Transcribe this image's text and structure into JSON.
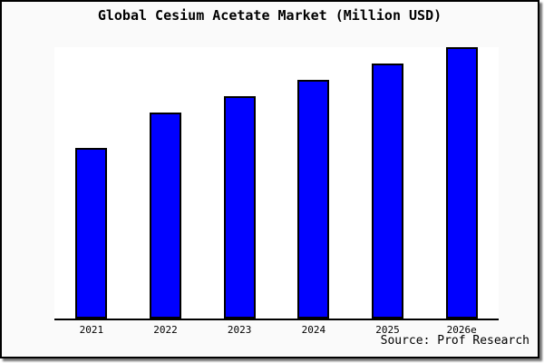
{
  "title": "Global Cesium Acetate Market (Million USD)",
  "source_credit": "Source: Prof Research",
  "colors": {
    "bar_fill": "#0000ff",
    "bar_edge": "#000000",
    "plot_background": "#ffffff",
    "figure_background": "#fafafa",
    "frame_border": "#000000",
    "axis_line": "#000000",
    "text": "#000000"
  },
  "chart_data": {
    "type": "bar",
    "title": "Global Cesium Acetate Market (Million USD)",
    "categories": [
      "2021",
      "2022",
      "2023",
      "2024",
      "2025",
      "2026e"
    ],
    "values": [
      63,
      76,
      82,
      88,
      94,
      100
    ],
    "xlabel": "",
    "ylabel": "",
    "ylim": [
      0,
      100
    ],
    "y_axis_visible": false,
    "x_axis_visible": true,
    "gridlines": false,
    "legend": false,
    "data_labels": false
  }
}
